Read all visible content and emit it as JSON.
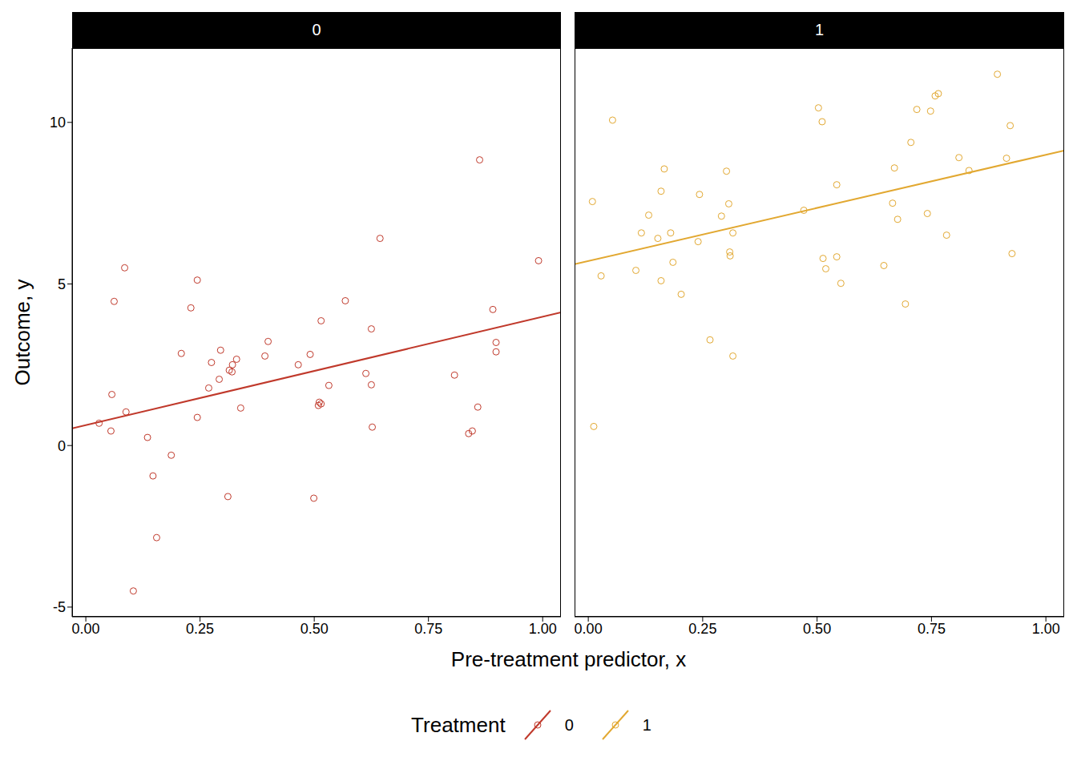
{
  "xlabel": "Pre-treatment predictor, x",
  "ylabel": "Outcome, y",
  "legend_title": "Treatment",
  "legend": "bottom",
  "chart_data": [
    {
      "type": "scatter",
      "title": "0",
      "xlim": [
        -0.03,
        1.04
      ],
      "ylim": [
        -5.3,
        12.3
      ],
      "xticks": [
        {
          "value": 0,
          "label": "0.00"
        },
        {
          "value": 0.25,
          "label": "0.25"
        },
        {
          "value": 0.5,
          "label": "0.50"
        },
        {
          "value": 0.75,
          "label": "0.75"
        },
        {
          "value": 1,
          "label": "1.00"
        }
      ],
      "yticks": [
        -5,
        0,
        5,
        10
      ],
      "series": [
        {
          "name": "0",
          "type": "scatter",
          "marker": "open_circle",
          "color": "#c0392b",
          "x": [
            0.029,
            0.055,
            0.057,
            0.062,
            0.085,
            0.088,
            0.104,
            0.135,
            0.147,
            0.155,
            0.187,
            0.209,
            0.23,
            0.244,
            0.244,
            0.269,
            0.275,
            0.292,
            0.295,
            0.311,
            0.314,
            0.321,
            0.32,
            0.33,
            0.339,
            0.392,
            0.399,
            0.465,
            0.491,
            0.499,
            0.509,
            0.511,
            0.515,
            0.515,
            0.532,
            0.568,
            0.613,
            0.625,
            0.625,
            0.627,
            0.644,
            0.807,
            0.838,
            0.846,
            0.858,
            0.862,
            0.891,
            0.898,
            0.898,
            0.991
          ],
          "values": [
            0.69,
            0.45,
            1.58,
            4.46,
            5.5,
            1.04,
            -4.5,
            0.25,
            -0.94,
            -2.85,
            -0.3,
            2.85,
            4.26,
            5.12,
            0.87,
            1.78,
            2.57,
            2.05,
            2.95,
            -1.58,
            2.33,
            2.5,
            2.28,
            2.67,
            1.16,
            2.77,
            3.22,
            2.5,
            2.82,
            -1.63,
            1.24,
            1.34,
            1.29,
            3.86,
            1.86,
            4.48,
            2.23,
            3.61,
            1.88,
            0.57,
            6.41,
            2.18,
            0.37,
            0.45,
            1.19,
            8.84,
            4.21,
            3.19,
            2.9,
            5.72
          ]
        },
        {
          "name": "0",
          "type": "line",
          "color": "#c0392b",
          "x": [
            -0.03,
            1.04
          ],
          "values": [
            0.53,
            4.12
          ]
        }
      ]
    },
    {
      "type": "scatter",
      "title": "1",
      "xlim": [
        -0.03,
        1.04
      ],
      "ylim": [
        -5.3,
        12.3
      ],
      "tick_labels": "x",
      "xticks": [
        {
          "value": 0,
          "label": "0.00"
        },
        {
          "value": 0.25,
          "label": "0.25"
        },
        {
          "value": 0.5,
          "label": "0.50"
        },
        {
          "value": 0.75,
          "label": "0.75"
        },
        {
          "value": 1,
          "label": "1.00"
        }
      ],
      "series": [
        {
          "name": "1",
          "type": "scatter",
          "marker": "open_circle",
          "color": "#e2a831",
          "x": [
            0.009,
            0.012,
            0.028,
            0.053,
            0.104,
            0.116,
            0.132,
            0.152,
            0.159,
            0.159,
            0.166,
            0.18,
            0.185,
            0.203,
            0.24,
            0.243,
            0.266,
            0.291,
            0.302,
            0.307,
            0.309,
            0.31,
            0.316,
            0.316,
            0.471,
            0.503,
            0.511,
            0.513,
            0.519,
            0.543,
            0.543,
            0.552,
            0.646,
            0.665,
            0.669,
            0.676,
            0.693,
            0.705,
            0.718,
            0.741,
            0.748,
            0.758,
            0.765,
            0.783,
            0.81,
            0.832,
            0.894,
            0.914,
            0.922,
            0.926
          ],
          "values": [
            7.55,
            0.59,
            5.25,
            10.07,
            5.42,
            6.58,
            7.13,
            6.41,
            7.87,
            5.1,
            8.56,
            6.58,
            5.67,
            4.68,
            6.31,
            7.77,
            3.27,
            7.1,
            8.49,
            7.48,
            5.99,
            5.87,
            6.58,
            2.77,
            7.28,
            10.45,
            10.02,
            5.79,
            5.47,
            5.84,
            8.07,
            5.02,
            5.57,
            7.5,
            8.59,
            7.0,
            4.38,
            9.38,
            10.4,
            7.18,
            10.35,
            10.82,
            10.89,
            6.51,
            8.91,
            8.51,
            11.49,
            8.89,
            9.9,
            5.94
          ]
        },
        {
          "name": "1",
          "type": "line",
          "color": "#e2a831",
          "x": [
            -0.03,
            1.04
          ],
          "values": [
            5.61,
            9.13
          ]
        }
      ]
    }
  ]
}
